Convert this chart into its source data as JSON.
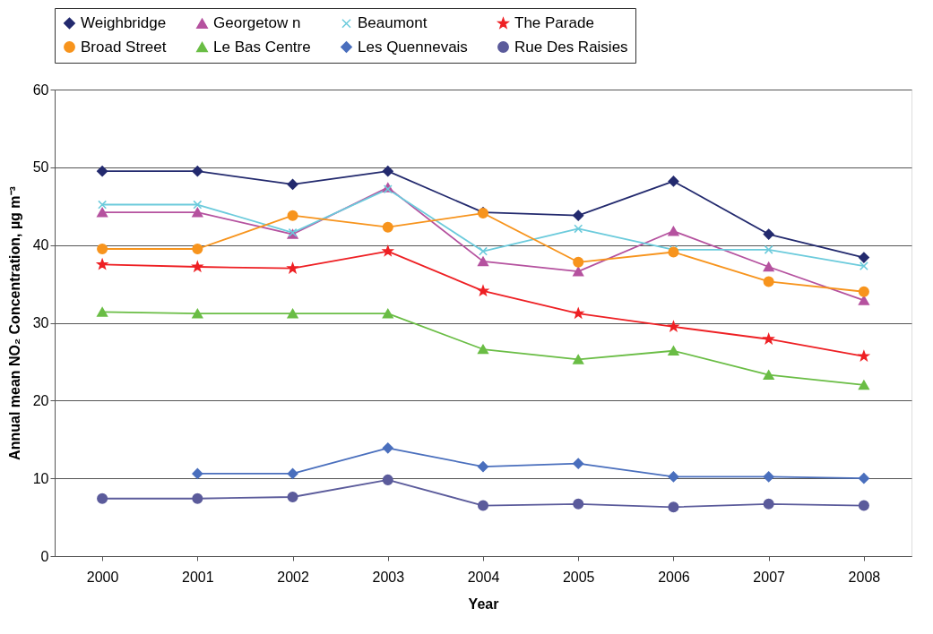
{
  "chart_data": {
    "type": "line",
    "xlabel": "Year",
    "ylabel": "Annual mean NO₂ Concentration, µg m⁻³",
    "categories": [
      "2000",
      "2001",
      "2002",
      "2003",
      "2004",
      "2005",
      "2006",
      "2007",
      "2008"
    ],
    "ylim": [
      0,
      60
    ],
    "yticks": [
      0,
      10,
      20,
      30,
      40,
      50,
      60
    ],
    "grid": "y",
    "legend": "top",
    "series": [
      {
        "name": "Weighbridge",
        "color": "#232a6e",
        "marker": "diamond",
        "values": [
          49.5,
          49.5,
          47.8,
          49.5,
          44.2,
          43.8,
          48.2,
          41.4,
          38.4
        ]
      },
      {
        "name": "Georgetow n",
        "color": "#b5529f",
        "marker": "triangle",
        "values": [
          44.2,
          44.2,
          41.4,
          47.4,
          37.9,
          36.6,
          41.8,
          37.2,
          32.9
        ]
      },
      {
        "name": "Beaumont",
        "color": "#6ccbdc",
        "marker": "cross",
        "values": [
          45.2,
          45.2,
          41.6,
          47.2,
          39.2,
          42.1,
          39.4,
          39.4,
          37.3
        ]
      },
      {
        "name": "The Parade",
        "color": "#ee2024",
        "marker": "star",
        "values": [
          37.5,
          37.2,
          37.0,
          39.2,
          34.1,
          31.2,
          29.5,
          27.9,
          25.7
        ]
      },
      {
        "name": "Broad Street",
        "color": "#f7941d",
        "marker": "circle",
        "values": [
          39.5,
          39.5,
          43.8,
          42.3,
          44.1,
          37.8,
          39.1,
          35.3,
          34.0
        ]
      },
      {
        "name": "Le Bas Centre",
        "color": "#6abd45",
        "marker": "triangle",
        "values": [
          31.4,
          31.2,
          31.2,
          31.2,
          26.6,
          25.3,
          26.4,
          23.3,
          22.0
        ]
      },
      {
        "name": "Les Quennevais",
        "color": "#4a6fbd",
        "marker": "diamond",
        "values": [
          null,
          10.6,
          10.6,
          13.9,
          11.5,
          11.9,
          10.2,
          10.2,
          10.0
        ]
      },
      {
        "name": "Rue Des Raisies",
        "color": "#5b5b9b",
        "marker": "circle",
        "values": [
          7.4,
          7.4,
          7.6,
          9.8,
          6.5,
          6.7,
          6.3,
          6.7,
          6.5
        ]
      }
    ]
  }
}
